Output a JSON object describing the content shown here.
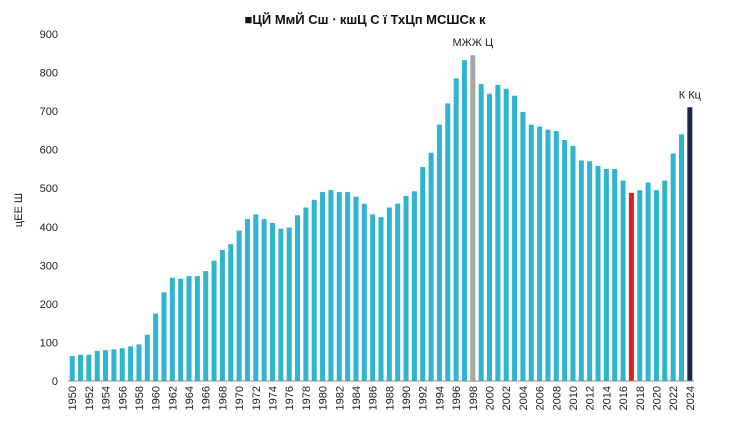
{
  "chart_data": {
    "type": "bar",
    "title": "■ЦЙ МмЙ Сш ⋅ кшЦ С ї ТхЦп  МСШСк к",
    "xlabel": "",
    "ylabel": "цЕЕ Ш",
    "ylim": [
      0,
      900
    ],
    "yticks": [
      0,
      100,
      200,
      300,
      400,
      500,
      600,
      700,
      800,
      900
    ],
    "grid": false,
    "legend": "none",
    "colors": {
      "default": "#2fb5cf",
      "peak": "#a6a6a6",
      "low": "#e0201b",
      "latest": "#1c2452"
    },
    "categories": [
      1950,
      1951,
      1952,
      1953,
      1954,
      1955,
      1956,
      1957,
      1958,
      1959,
      1960,
      1961,
      1962,
      1963,
      1964,
      1965,
      1966,
      1967,
      1968,
      1969,
      1970,
      1971,
      1972,
      1973,
      1974,
      1975,
      1976,
      1977,
      1978,
      1979,
      1980,
      1981,
      1982,
      1983,
      1984,
      1985,
      1986,
      1987,
      1988,
      1989,
      1990,
      1991,
      1992,
      1993,
      1994,
      1995,
      1996,
      1997,
      1998,
      1999,
      2000,
      2001,
      2002,
      2003,
      2004,
      2005,
      2006,
      2007,
      2008,
      2009,
      2010,
      2011,
      2012,
      2013,
      2014,
      2015,
      2016,
      2017,
      2018,
      2019,
      2020,
      2021,
      2022,
      2023,
      2024
    ],
    "xtick_labels": [
      "1950",
      "1952",
      "1954",
      "1956",
      "1958",
      "1960",
      "1962",
      "1964",
      "1966",
      "1968",
      "1970",
      "1972",
      "1974",
      "1976",
      "1978",
      "1980",
      "1982",
      "1984",
      "1986",
      "1988",
      "1990",
      "1992",
      "1994",
      "1996",
      "1998",
      "2000",
      "2002",
      "2004",
      "2006",
      "2008",
      "2010",
      "2012",
      "2014",
      "2016",
      "2018",
      "2020",
      "2022",
      "2024"
    ],
    "values": [
      65,
      68,
      68,
      78,
      80,
      82,
      85,
      90,
      95,
      120,
      175,
      230,
      268,
      265,
      272,
      272,
      285,
      312,
      340,
      355,
      390,
      420,
      432,
      420,
      410,
      395,
      398,
      430,
      450,
      470,
      490,
      495,
      490,
      490,
      478,
      460,
      432,
      425,
      450,
      460,
      480,
      492,
      555,
      592,
      665,
      720,
      785,
      832,
      845,
      770,
      745,
      768,
      758,
      740,
      698,
      665,
      660,
      652,
      648,
      625,
      610,
      572,
      570,
      558,
      550,
      550,
      520,
      488,
      495,
      515,
      495,
      520,
      590,
      640,
      710
    ],
    "highlights": {
      "1998": "peak",
      "2017": "low",
      "2024": "latest"
    },
    "annotations": [
      {
        "x": 1998,
        "text": "МЖЖ Ц"
      },
      {
        "x": 2024,
        "text": "К Кц"
      }
    ]
  }
}
